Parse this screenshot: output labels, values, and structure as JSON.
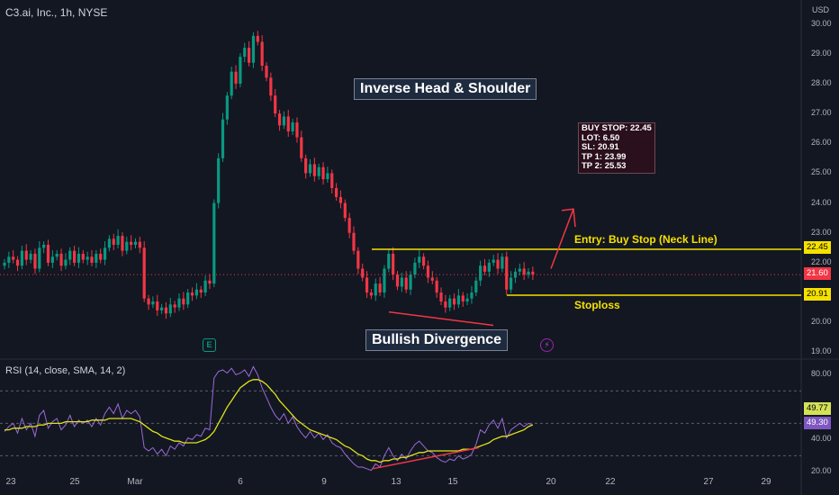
{
  "header": {
    "symbol_label": "C3.ai, Inc., 1h, NYSE",
    "currency": "USD"
  },
  "annotations": {
    "pattern": "Inverse Head & Shoulder",
    "divergence": "Bullish Divergence",
    "entry": "Entry: Buy Stop (Neck Line)",
    "stoploss": "Stoploss",
    "order_box": [
      "BUY STOP: 22.45",
      "LOT: 6.50",
      "SL: 20.91",
      "TP 1: 23.99",
      "TP 2: 25.53"
    ]
  },
  "badges": {
    "earnings": "E",
    "dividend": "⚡"
  },
  "colors": {
    "up": "#089981",
    "down": "#f23645",
    "annotation_yellow": "#f5e100",
    "rsi_line": "#9c6ad9",
    "rsi_sma": "#e0e31a"
  },
  "chart_data": [
    {
      "type": "candlestick",
      "title": "C3.ai, Inc., 1h, NYSE",
      "y_unit": "USD",
      "ylim": [
        18.8,
        30.2
      ],
      "y_ticks": [
        "30.00",
        "29.00",
        "28.00",
        "27.00",
        "26.00",
        "25.00",
        "24.00",
        "23.00",
        "22.00",
        "20.00",
        "19.00"
      ],
      "x_ticks": [
        "23",
        "25",
        "Mar",
        "6",
        "9",
        "13",
        "15",
        "20",
        "22",
        "27",
        "29"
      ],
      "price_tags": {
        "entry": "22.45",
        "current": "21.60",
        "stoploss": "20.91"
      },
      "levels": {
        "entry": 22.45,
        "stoploss": 20.91,
        "current": 21.6
      },
      "candles_close": [
        22.0,
        22.2,
        22.1,
        21.9,
        22.4,
        22.1,
        22.3,
        21.8,
        22.5,
        22.6,
        22.0,
        22.2,
        22.3,
        21.9,
        22.1,
        22.4,
        22.0,
        22.3,
        22.1,
        22.2,
        22.0,
        22.3,
        22.1,
        22.5,
        22.8,
        22.6,
        22.9,
        22.4,
        22.7,
        22.6,
        22.7,
        22.5,
        20.8,
        20.6,
        20.7,
        20.4,
        20.5,
        20.3,
        20.6,
        20.5,
        20.8,
        20.6,
        21.0,
        20.9,
        21.1,
        21.0,
        21.4,
        21.3,
        24.0,
        25.5,
        26.8,
        27.6,
        28.4,
        28.0,
        28.9,
        29.2,
        28.7,
        29.6,
        29.4,
        28.6,
        28.2,
        27.6,
        27.0,
        26.6,
        26.9,
        26.4,
        26.7,
        26.2,
        25.5,
        25.0,
        25.3,
        24.9,
        25.2,
        24.8,
        25.0,
        24.5,
        24.2,
        24.0,
        23.5,
        23.0,
        22.4,
        21.8,
        21.5,
        21.0,
        20.9,
        21.3,
        21.0,
        21.8,
        22.3,
        21.6,
        21.2,
        21.5,
        21.1,
        21.6,
        22.0,
        22.2,
        21.9,
        21.5,
        21.4,
        21.0,
        20.7,
        20.5,
        20.8,
        20.6,
        20.9,
        20.7,
        20.8,
        21.0,
        21.4,
        21.9,
        21.7,
        22.0,
        22.1,
        21.8,
        22.2,
        21.1,
        21.5,
        21.7,
        21.8,
        21.6,
        21.7,
        21.6
      ],
      "candles_open_first": 21.9
    },
    {
      "type": "line",
      "title": "RSI (14, close, SMA, 14, 2)",
      "ylim": [
        18,
        88
      ],
      "y_ticks": [
        "80.00",
        "60.00",
        "40.00",
        "20.00"
      ],
      "value_tags": {
        "rsi": "49.77",
        "sma": "49.30"
      },
      "bands": [
        70,
        50,
        30
      ],
      "series": [
        {
          "name": "RSI",
          "values": [
            45,
            48,
            50,
            44,
            53,
            46,
            50,
            42,
            55,
            58,
            47,
            51,
            53,
            46,
            49,
            55,
            48,
            52,
            50,
            52,
            48,
            53,
            49,
            56,
            60,
            56,
            62,
            53,
            58,
            56,
            58,
            54,
            35,
            33,
            35,
            31,
            34,
            30,
            36,
            34,
            38,
            36,
            41,
            40,
            43,
            42,
            47,
            46,
            78,
            82,
            83,
            81,
            84,
            80,
            81,
            83,
            79,
            85,
            80,
            72,
            66,
            60,
            55,
            52,
            56,
            50,
            54,
            48,
            44,
            41,
            45,
            41,
            44,
            40,
            43,
            38,
            36,
            35,
            31,
            28,
            25,
            23,
            23,
            22,
            21,
            25,
            23,
            30,
            35,
            30,
            27,
            31,
            28,
            33,
            37,
            39,
            36,
            33,
            32,
            29,
            27,
            26,
            28,
            27,
            30,
            28,
            29,
            31,
            37,
            46,
            44,
            49,
            52,
            47,
            53,
            41,
            46,
            48,
            50,
            48,
            50,
            49
          ]
        },
        {
          "name": "SMA",
          "values": [
            46,
            46,
            47,
            47,
            47,
            48,
            48,
            48,
            49,
            49,
            50,
            50,
            50,
            50,
            51,
            51,
            51,
            51,
            51,
            51,
            52,
            52,
            52,
            52,
            53,
            53,
            53,
            53,
            53,
            53,
            52,
            51,
            49,
            47,
            45,
            44,
            42,
            41,
            40,
            39,
            39,
            38,
            38,
            38,
            38,
            39,
            40,
            42,
            45,
            50,
            55,
            60,
            64,
            68,
            72,
            74,
            76,
            77,
            77,
            76,
            74,
            71,
            68,
            64,
            61,
            58,
            55,
            52,
            50,
            48,
            46,
            45,
            44,
            43,
            42,
            41,
            40,
            38,
            36,
            35,
            33,
            31,
            30,
            28,
            27,
            27,
            26,
            27,
            27,
            28,
            28,
            29,
            29,
            30,
            31,
            32,
            32,
            33,
            33,
            33,
            33,
            33,
            33,
            33,
            33,
            34,
            34,
            34,
            35,
            36,
            37,
            38,
            40,
            41,
            42,
            42,
            43,
            44,
            45,
            46,
            48,
            49
          ]
        }
      ]
    }
  ]
}
